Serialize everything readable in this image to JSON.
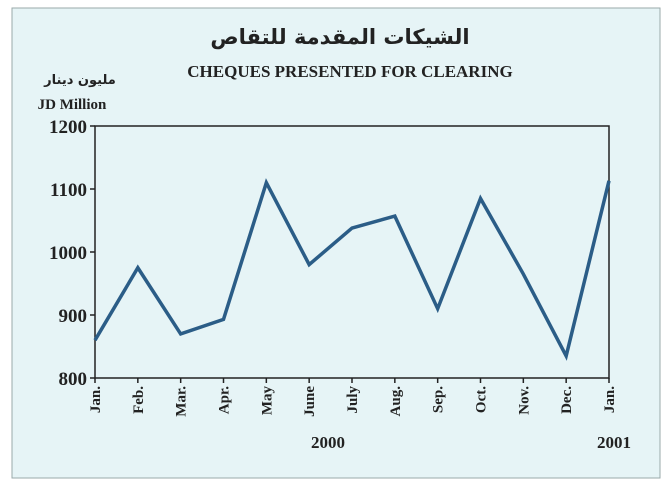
{
  "chart_data": {
    "type": "line",
    "title": "الشيكات المقدمة للتقاص",
    "subtitle": "CHEQUES PRESENTED FOR CLEARING",
    "ylabel_arabic": "مليون دينار",
    "ylabel": "JD Million",
    "categories": [
      "Jan.",
      "Feb.",
      "Mar.",
      "Apr.",
      "May",
      "June",
      "July",
      "Aug.",
      "Sep.",
      "Oct.",
      "Nov.",
      "Dec.",
      "Jan."
    ],
    "annotations": [
      "2000",
      "2001"
    ],
    "series": [
      {
        "name": "Cheques",
        "color": "#2b5d87",
        "values": [
          860,
          975,
          870,
          893,
          1110,
          980,
          1038,
          1057,
          910,
          1085,
          965,
          835,
          1113
        ]
      }
    ],
    "ylim": [
      800,
      1200
    ],
    "yticks": [
      800,
      900,
      1000,
      1100,
      1200
    ],
    "grid": false
  }
}
